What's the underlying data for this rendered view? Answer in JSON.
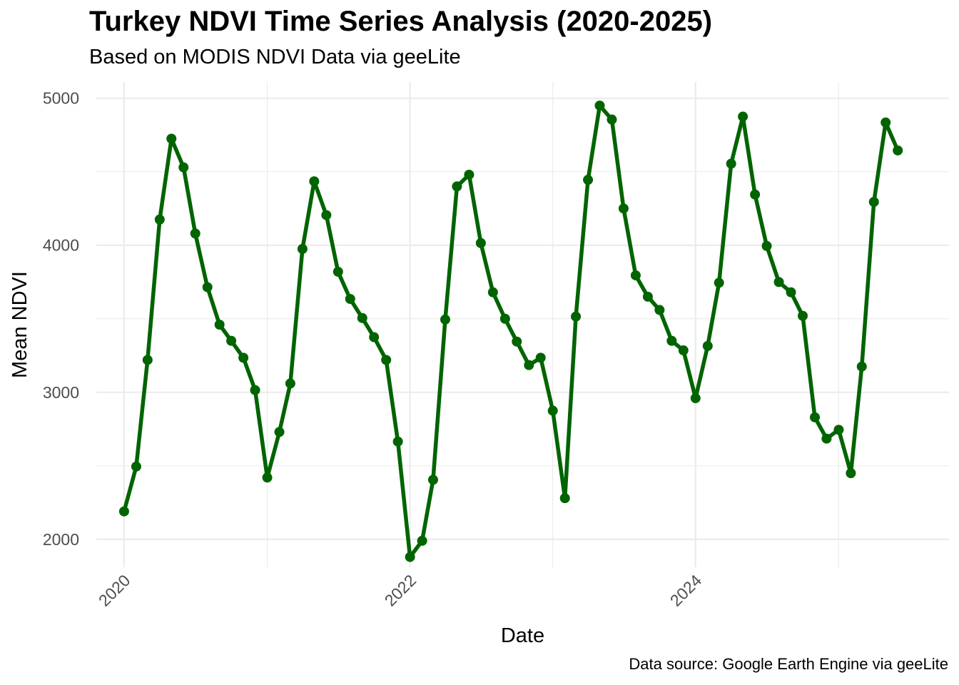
{
  "chart_data": {
    "type": "line",
    "title": "Turkey NDVI Time Series Analysis (2020-2025)",
    "subtitle": "Based on MODIS NDVI Data via geeLite",
    "caption": "Data source: Google Earth Engine via geeLite",
    "xlabel": "Date",
    "ylabel": "Mean NDVI",
    "x_ticks": [
      "2020",
      "2022",
      "2024"
    ],
    "y_ticks": [
      2000,
      3000,
      4000,
      5000
    ],
    "xlim": [
      "2019-10-22",
      "2025-10-10"
    ],
    "ylim": [
      1810,
      5110
    ],
    "grid": true,
    "legend": "none",
    "line_color": "#006400",
    "grid_color": "#ebebeb",
    "series": [
      {
        "points": [
          [
            "2020-01-01",
            2190
          ],
          [
            "2020-02-01",
            2495
          ],
          [
            "2020-03-01",
            3220
          ],
          [
            "2020-04-01",
            4175
          ],
          [
            "2020-05-01",
            4725
          ],
          [
            "2020-06-01",
            4530
          ],
          [
            "2020-07-01",
            4080
          ],
          [
            "2020-08-01",
            3715
          ],
          [
            "2020-09-01",
            3460
          ],
          [
            "2020-10-01",
            3350
          ],
          [
            "2020-11-01",
            3235
          ],
          [
            "2020-12-01",
            3015
          ],
          [
            "2021-01-01",
            2420
          ],
          [
            "2021-02-01",
            2730
          ],
          [
            "2021-03-01",
            3060
          ],
          [
            "2021-04-01",
            3975
          ],
          [
            "2021-05-01",
            4435
          ],
          [
            "2021-06-01",
            4205
          ],
          [
            "2021-07-01",
            3820
          ],
          [
            "2021-08-01",
            3635
          ],
          [
            "2021-09-01",
            3505
          ],
          [
            "2021-10-01",
            3375
          ],
          [
            "2021-11-01",
            3220
          ],
          [
            "2021-12-01",
            2665
          ],
          [
            "2022-01-01",
            1880
          ],
          [
            "2022-02-01",
            1990
          ],
          [
            "2022-03-01",
            2405
          ],
          [
            "2022-04-01",
            3495
          ],
          [
            "2022-05-01",
            4400
          ],
          [
            "2022-06-01",
            4480
          ],
          [
            "2022-07-01",
            4015
          ],
          [
            "2022-08-01",
            3680
          ],
          [
            "2022-09-01",
            3500
          ],
          [
            "2022-10-01",
            3345
          ],
          [
            "2022-11-01",
            3185
          ],
          [
            "2022-12-01",
            3235
          ],
          [
            "2023-01-01",
            2875
          ],
          [
            "2023-02-01",
            2280
          ],
          [
            "2023-03-01",
            3515
          ],
          [
            "2023-04-01",
            4445
          ],
          [
            "2023-05-01",
            4950
          ],
          [
            "2023-06-01",
            4855
          ],
          [
            "2023-07-01",
            4250
          ],
          [
            "2023-08-01",
            3795
          ],
          [
            "2023-09-01",
            3650
          ],
          [
            "2023-10-01",
            3560
          ],
          [
            "2023-11-01",
            3350
          ],
          [
            "2023-12-01",
            3285
          ],
          [
            "2024-01-01",
            2960
          ],
          [
            "2024-02-01",
            3315
          ],
          [
            "2024-03-01",
            3745
          ],
          [
            "2024-04-01",
            4555
          ],
          [
            "2024-05-01",
            4875
          ],
          [
            "2024-06-01",
            4345
          ],
          [
            "2024-07-01",
            3995
          ],
          [
            "2024-08-01",
            3750
          ],
          [
            "2024-09-01",
            3680
          ],
          [
            "2024-10-01",
            3520
          ],
          [
            "2024-11-01",
            2830
          ],
          [
            "2024-12-01",
            2685
          ],
          [
            "2025-01-01",
            2745
          ],
          [
            "2025-02-01",
            2450
          ],
          [
            "2025-03-01",
            3175
          ],
          [
            "2025-04-01",
            4295
          ],
          [
            "2025-05-01",
            4835
          ],
          [
            "2025-06-01",
            4645
          ]
        ]
      }
    ]
  }
}
